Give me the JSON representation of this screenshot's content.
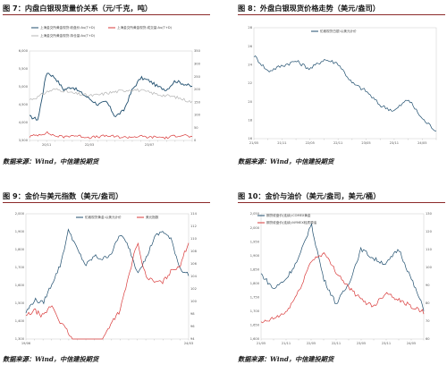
{
  "figures": [
    {
      "title": "图 7：内盘白银现货量价关系（元/千克，吨）",
      "source": "数据来源：Wind，中信建投期货",
      "chart_data": {
        "type": "line",
        "title": "",
        "x": [
          "20/01",
          "20/04",
          "20/07",
          "20/10",
          "21/01",
          "21/04",
          "21/07",
          "21/10",
          "22/01",
          "22/04",
          "22/07",
          "22/10",
          "23/01",
          "23/04",
          "23/07",
          "23/10",
          "24/01",
          "24/04",
          "24/07",
          "24/10"
        ],
        "x_ticks": [
          "",
          "",
          "20/11",
          "",
          "",
          "",
          "",
          "22/03",
          "",
          "",
          "",
          "",
          "",
          "",
          "23/07",
          "",
          "",
          "",
          "",
          ""
        ],
        "left_axis": {
          "ticks": [
            "6,000",
            "5,500",
            "5,000",
            "4,500",
            "4,000",
            "3,500"
          ],
          "ylim": [
            3500,
            6500
          ]
        },
        "right_axis": {
          "ticks": [
            "350",
            "300",
            "250",
            "200",
            "150",
            "100",
            "50",
            "0"
          ],
          "ylim": [
            0,
            350
          ]
        },
        "series": [
          {
            "name": "上海金交所黄金现货:收盘价:Au(T+D)",
            "axis": "left",
            "color": "#1f4e6e",
            "values": [
              4300,
              4200,
              5800,
              5600,
              5200,
              5300,
              5100,
              4900,
              4700,
              4800,
              4300,
              4500,
              5200,
              5600,
              5500,
              5300,
              5200,
              5500,
              5400,
              5300
            ]
          },
          {
            "name": "上海金交所黄金现货:成交量:Au(T+D)",
            "axis": "right",
            "color": "#d93a3a",
            "values": [
              15,
              22,
              30,
              18,
              14,
              20,
              16,
              12,
              14,
              18,
              15,
              12,
              14,
              16,
              12,
              14,
              10,
              18,
              22,
              12
            ]
          },
          {
            "name": "上海金交所黄金现货:持仓量:Au(T+D)",
            "axis": "right",
            "color": "#b5b5b5",
            "values": [
              160,
              170,
              190,
              200,
              195,
              185,
              180,
              175,
              178,
              185,
              190,
              195,
              200,
              195,
              188,
              180,
              175,
              170,
              160,
              150
            ]
          }
        ]
      }
    },
    {
      "title": "图 8：外盘白银现货价格走势（美元/盎司）",
      "source": "数据来源：Wind，中信建投期货",
      "chart_data": {
        "type": "line",
        "title": "",
        "x": [
          "21/05",
          "21/08",
          "21/11",
          "22/02",
          "22/05",
          "22/08",
          "22/11",
          "23/02",
          "23/05",
          "23/08",
          "23/11",
          "24/02",
          "24/05",
          "24/08"
        ],
        "x_ticks": [
          "21/05",
          "",
          "21/11",
          "",
          "22/05",
          "",
          "22/11",
          "",
          "23/05",
          "",
          "23/11",
          "",
          "24/05",
          ""
        ],
        "left_axis": {
          "ticks": [
            "28",
            "26",
            "24",
            "22",
            "20",
            "18",
            "16"
          ],
          "ylim": [
            15,
            29
          ]
        },
        "series": [
          {
            "name": "伦敦现货白银:以美元计价",
            "axis": "left",
            "color": "#1f4e6e",
            "values": [
              25.5,
              23.5,
              24.2,
              24.8,
              23.8,
              25.0,
              24.5,
              22.0,
              21.0,
              19.2,
              18.5,
              20.0,
              17.5,
              16.0
            ]
          }
        ]
      }
    },
    {
      "title": "图 9：金价与美元指数（美元/盎司）",
      "source": "数据来源：Wind，中信建投期货",
      "chart_data": {
        "type": "line",
        "title": "",
        "x": [
          "19/06",
          "19/09",
          "19/12",
          "20/03",
          "20/06",
          "20/09",
          "20/12",
          "21/03",
          "21/06",
          "21/09",
          "21/12",
          "22/03",
          "22/06",
          "22/09",
          "22/12",
          "23/03",
          "23/06",
          "23/09",
          "23/12",
          "24/03"
        ],
        "x_ticks": [
          "19/06",
          "",
          "",
          "",
          "",
          "",
          "",
          "",
          "",
          "",
          "",
          "",
          "",
          "",
          "",
          "",
          "",
          "",
          "",
          "24/03"
        ],
        "left_axis": {
          "ticks": [
            "2,000",
            "1,900",
            "1,800",
            "1,700",
            "1,600",
            "1,500",
            "1,400",
            "1,300"
          ],
          "ylim": [
            1250,
            2050
          ]
        },
        "right_axis": {
          "ticks": [
            "114",
            "112",
            "110",
            "108",
            "106",
            "104",
            "102",
            "100",
            "98",
            "96",
            "94"
          ],
          "ylim": [
            93,
            115
          ]
        },
        "series": [
          {
            "name": "伦敦现货黄金:以美元计价",
            "axis": "left",
            "color": "#1f4e6e",
            "values": [
              1420,
              1500,
              1480,
              1600,
              1720,
              1950,
              1820,
              1720,
              1780,
              1760,
              1800,
              1920,
              1840,
              1680,
              1760,
              1900,
              1940,
              1880,
              1700,
              1660
            ]
          },
          {
            "name": "美元指数",
            "axis": "right",
            "color": "#d93a3a",
            "values": [
              97,
              98,
              97,
              99,
              96,
              94,
              91,
              92,
              92,
              93,
              96,
              98,
              104,
              110,
              104,
              103,
              103,
              105,
              106,
              110
            ]
          }
        ]
      }
    },
    {
      "title": "图 10：金价与油价（美元/盎司，美元/桶）",
      "source": "数据来源：Wind，中信建投期货",
      "chart_data": {
        "type": "line",
        "title": "",
        "x": [
          "21/05",
          "21/08",
          "21/11",
          "22/02",
          "22/05",
          "22/08",
          "22/11",
          "23/02",
          "23/05",
          "23/08",
          "23/11",
          "24/02",
          "24/05",
          "24/08"
        ],
        "x_ticks": [
          "21/05",
          "",
          "21/11",
          "",
          "22/05",
          "",
          "22/11",
          "",
          "23/05",
          "",
          "23/11",
          "",
          "24/05",
          ""
        ],
        "left_axis": {
          "ticks": [
            "2,050",
            "2,000",
            "1,950",
            "1,900",
            "1,850",
            "1,800",
            "1,750",
            "1,700",
            "1,650",
            "1,600"
          ],
          "ylim": [
            1580,
            2080
          ]
        },
        "right_axis": {
          "ticks": [
            "130",
            "120",
            "110",
            "100",
            "90",
            "80",
            "70",
            "60"
          ],
          "ylim": [
            55,
            135
          ]
        },
        "series": [
          {
            "name": "期货收盘价(连续):COMEX黄金",
            "axis": "left",
            "color": "#1f4e6e",
            "values": [
              1840,
              1780,
              1820,
              1900,
              2040,
              1820,
              1720,
              1800,
              1940,
              1900,
              1880,
              1940,
              1820,
              1700
            ]
          },
          {
            "name": "期货收盘价(连续):NYMEX轻质原油",
            "axis": "right",
            "color": "#d93a3a",
            "values": [
              65,
              68,
              72,
              85,
              105,
              110,
              98,
              88,
              80,
              76,
              85,
              80,
              76,
              72
            ]
          }
        ]
      }
    }
  ]
}
